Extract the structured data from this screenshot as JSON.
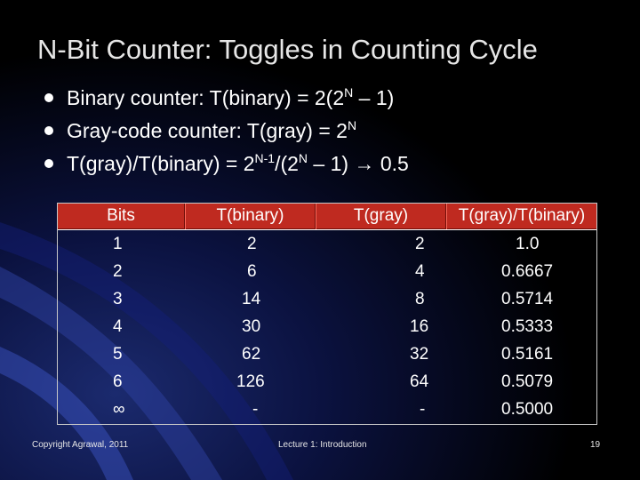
{
  "title": "N-Bit Counter: Toggles in Counting Cycle",
  "bullets": [
    {
      "pre": "Binary counter: T(binary) = 2(2",
      "sup1": "N",
      "post": " – 1)"
    },
    {
      "pre": "Gray-code counter: T(gray) = 2",
      "sup1": "N"
    },
    {
      "pre": "T(gray)/T(binary) = 2",
      "sup1": "N-1",
      "mid": "/(2",
      "sup2": "N",
      "post": " – 1) → 0.5"
    }
  ],
  "table": {
    "headers": [
      "Bits",
      "T(binary)",
      "T(gray)",
      "T(gray)/T(binary)"
    ],
    "rows": [
      [
        "1",
        "2",
        "2",
        "1.0"
      ],
      [
        "2",
        "6",
        "4",
        "0.6667"
      ],
      [
        "3",
        "14",
        "8",
        "0.5714"
      ],
      [
        "4",
        "30",
        "16",
        "0.5333"
      ],
      [
        "5",
        "62",
        "32",
        "0.5161"
      ],
      [
        "6",
        "126",
        "64",
        "0.5079"
      ],
      [
        "∞",
        "-",
        "-",
        "0.5000"
      ]
    ]
  },
  "footer": {
    "copyright": "Copyright Agrawal, 2011",
    "lecture": "Lecture 1: Introduction",
    "page": "19"
  }
}
